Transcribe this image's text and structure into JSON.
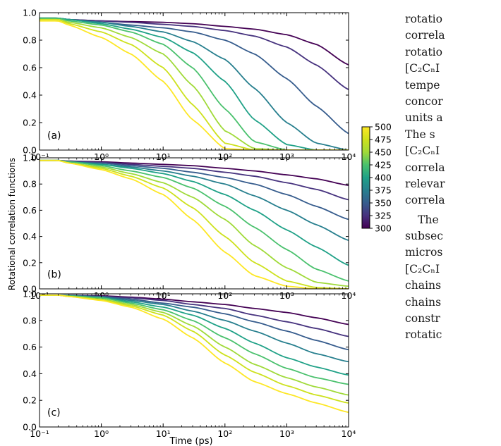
{
  "chart_data": [
    {
      "type": "line",
      "panel_label": "(a)",
      "xscale": "log",
      "xlim": [
        0.1,
        10000
      ],
      "ylim": [
        0.0,
        1.0
      ],
      "x_ticks": [
        "10⁻¹",
        "10⁰",
        "10¹",
        "10²",
        "10³",
        "10⁴"
      ],
      "y_ticks": [
        "0.0",
        "0.2",
        "0.4",
        "0.6",
        "0.8",
        "1.0"
      ],
      "x": [
        0.1,
        0.2,
        0.3,
        1,
        3,
        10,
        30,
        100,
        300,
        1000,
        3000,
        10000
      ],
      "series": [
        {
          "temperature": 300,
          "values": [
            0.96,
            0.96,
            0.95,
            0.94,
            0.935,
            0.93,
            0.92,
            0.9,
            0.88,
            0.84,
            0.77,
            0.62
          ]
        },
        {
          "temperature": 325,
          "values": [
            0.96,
            0.96,
            0.95,
            0.94,
            0.93,
            0.915,
            0.9,
            0.87,
            0.83,
            0.75,
            0.62,
            0.44
          ]
        },
        {
          "temperature": 350,
          "values": [
            0.96,
            0.96,
            0.95,
            0.93,
            0.91,
            0.89,
            0.86,
            0.8,
            0.7,
            0.52,
            0.32,
            0.12
          ]
        },
        {
          "temperature": 375,
          "values": [
            0.96,
            0.96,
            0.95,
            0.93,
            0.9,
            0.86,
            0.79,
            0.66,
            0.45,
            0.2,
            0.05,
            0.0
          ]
        },
        {
          "temperature": 400,
          "values": [
            0.96,
            0.96,
            0.95,
            0.92,
            0.88,
            0.82,
            0.71,
            0.5,
            0.22,
            0.04,
            0.0,
            0.0
          ]
        },
        {
          "temperature": 425,
          "values": [
            0.96,
            0.96,
            0.94,
            0.91,
            0.86,
            0.77,
            0.6,
            0.3,
            0.06,
            0.0,
            0.0,
            0.0
          ]
        },
        {
          "temperature": 450,
          "values": [
            0.95,
            0.95,
            0.93,
            0.89,
            0.82,
            0.7,
            0.47,
            0.14,
            0.01,
            0.0,
            0.0,
            0.0
          ]
        },
        {
          "temperature": 475,
          "values": [
            0.95,
            0.95,
            0.92,
            0.86,
            0.77,
            0.6,
            0.33,
            0.05,
            0.0,
            0.0,
            0.0,
            0.0
          ]
        },
        {
          "temperature": 500,
          "values": [
            0.94,
            0.94,
            0.91,
            0.82,
            0.7,
            0.5,
            0.22,
            0.01,
            0.0,
            0.0,
            0.0,
            0.0
          ]
        }
      ]
    },
    {
      "type": "line",
      "panel_label": "(b)",
      "xscale": "log",
      "xlim": [
        0.1,
        10000
      ],
      "ylim": [
        0.0,
        1.0
      ],
      "x_ticks": [
        "10⁻¹",
        "10⁰",
        "10¹",
        "10²",
        "10³",
        "10⁴"
      ],
      "y_ticks": [
        "0.0",
        "0.2",
        "0.4",
        "0.6",
        "0.8",
        "1.0"
      ],
      "x": [
        0.1,
        0.2,
        0.3,
        1,
        3,
        10,
        30,
        100,
        300,
        1000,
        3000,
        10000
      ],
      "series": [
        {
          "temperature": 300,
          "values": [
            0.98,
            0.98,
            0.975,
            0.97,
            0.96,
            0.95,
            0.94,
            0.92,
            0.9,
            0.87,
            0.84,
            0.79
          ]
        },
        {
          "temperature": 325,
          "values": [
            0.98,
            0.98,
            0.975,
            0.965,
            0.95,
            0.935,
            0.92,
            0.89,
            0.86,
            0.81,
            0.76,
            0.68
          ]
        },
        {
          "temperature": 350,
          "values": [
            0.98,
            0.98,
            0.97,
            0.96,
            0.94,
            0.92,
            0.89,
            0.85,
            0.8,
            0.72,
            0.63,
            0.53
          ]
        },
        {
          "temperature": 375,
          "values": [
            0.98,
            0.98,
            0.97,
            0.95,
            0.93,
            0.9,
            0.86,
            0.8,
            0.71,
            0.6,
            0.49,
            0.37
          ]
        },
        {
          "temperature": 400,
          "values": [
            0.98,
            0.98,
            0.97,
            0.95,
            0.92,
            0.88,
            0.82,
            0.72,
            0.6,
            0.45,
            0.32,
            0.18
          ]
        },
        {
          "temperature": 425,
          "values": [
            0.98,
            0.98,
            0.97,
            0.94,
            0.9,
            0.85,
            0.77,
            0.63,
            0.47,
            0.3,
            0.15,
            0.06
          ]
        },
        {
          "temperature": 450,
          "values": [
            0.98,
            0.98,
            0.96,
            0.93,
            0.88,
            0.81,
            0.7,
            0.53,
            0.33,
            0.16,
            0.05,
            0.02
          ]
        },
        {
          "temperature": 475,
          "values": [
            0.98,
            0.98,
            0.96,
            0.92,
            0.86,
            0.77,
            0.62,
            0.4,
            0.2,
            0.06,
            0.01,
            0.0
          ]
        },
        {
          "temperature": 500,
          "values": [
            0.98,
            0.98,
            0.96,
            0.91,
            0.84,
            0.72,
            0.53,
            0.28,
            0.1,
            0.02,
            0.0,
            0.0
          ]
        }
      ]
    },
    {
      "type": "line",
      "panel_label": "(c)",
      "xscale": "log",
      "xlim": [
        0.1,
        10000
      ],
      "ylim": [
        0.0,
        1.0
      ],
      "x_ticks": [
        "10⁻¹",
        "10⁰",
        "10¹",
        "10²",
        "10³",
        "10⁴"
      ],
      "y_ticks": [
        "0.0",
        "0.2",
        "0.4",
        "0.6",
        "0.8",
        "1.0"
      ],
      "x": [
        0.1,
        0.2,
        0.3,
        1,
        3,
        10,
        30,
        100,
        300,
        1000,
        3000,
        10000
      ],
      "series": [
        {
          "temperature": 300,
          "values": [
            0.99,
            0.99,
            0.99,
            0.985,
            0.975,
            0.96,
            0.94,
            0.92,
            0.89,
            0.86,
            0.82,
            0.77
          ]
        },
        {
          "temperature": 325,
          "values": [
            0.99,
            0.99,
            0.99,
            0.98,
            0.97,
            0.95,
            0.92,
            0.89,
            0.84,
            0.79,
            0.74,
            0.68
          ]
        },
        {
          "temperature": 350,
          "values": [
            0.99,
            0.99,
            0.99,
            0.98,
            0.96,
            0.93,
            0.9,
            0.85,
            0.79,
            0.72,
            0.65,
            0.58
          ]
        },
        {
          "temperature": 375,
          "values": [
            0.99,
            0.99,
            0.985,
            0.975,
            0.95,
            0.92,
            0.87,
            0.8,
            0.72,
            0.63,
            0.55,
            0.49
          ]
        },
        {
          "temperature": 400,
          "values": [
            0.99,
            0.99,
            0.985,
            0.97,
            0.94,
            0.9,
            0.84,
            0.74,
            0.63,
            0.52,
            0.45,
            0.39
          ]
        },
        {
          "temperature": 425,
          "values": [
            0.99,
            0.99,
            0.985,
            0.97,
            0.93,
            0.88,
            0.8,
            0.67,
            0.55,
            0.44,
            0.37,
            0.32
          ]
        },
        {
          "temperature": 450,
          "values": [
            0.99,
            0.99,
            0.98,
            0.96,
            0.92,
            0.86,
            0.76,
            0.6,
            0.47,
            0.37,
            0.3,
            0.24
          ]
        },
        {
          "temperature": 475,
          "values": [
            0.99,
            0.99,
            0.98,
            0.955,
            0.91,
            0.84,
            0.72,
            0.54,
            0.41,
            0.31,
            0.24,
            0.18
          ]
        },
        {
          "temperature": 500,
          "values": [
            0.99,
            0.99,
            0.98,
            0.95,
            0.9,
            0.81,
            0.67,
            0.48,
            0.34,
            0.25,
            0.18,
            0.11
          ]
        }
      ]
    }
  ],
  "shared": {
    "xlabel": "Time (ps)",
    "ylabel": "Rotational correlation functions"
  },
  "colorbar": {
    "min": 300,
    "max": 500,
    "tick_labels": [
      "500",
      "475",
      "450",
      "425",
      "400",
      "375",
      "350",
      "325",
      "300"
    ],
    "colormap": "viridis"
  },
  "side_text": {
    "lines": [
      "rotatio",
      "correla",
      "rotatio",
      "[C₂CₙI",
      "tempe",
      "concor",
      "units a",
      "The  s",
      "[C₂CₙI",
      "correla",
      "relevar",
      "correla",
      "The",
      "subsec",
      "micros",
      "[C₂CₙI",
      "chains",
      "chains",
      "constr",
      "rotatic"
    ]
  }
}
